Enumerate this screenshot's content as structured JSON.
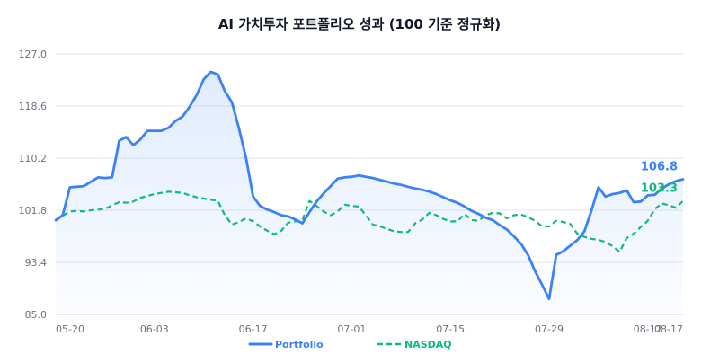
{
  "chart_data": {
    "type": "line",
    "title": "AI 가치투자 포트폴리오 성과 (100 기준 정규화)",
    "xlabel": "",
    "ylabel": "",
    "ylim": [
      85.0,
      127.0
    ],
    "y_ticks": [
      "127.0",
      "118.6",
      "110.2",
      "101.8",
      "93.4",
      "85.0"
    ],
    "y_tick_values": [
      127.0,
      118.6,
      110.2,
      101.8,
      93.4,
      85.0
    ],
    "x_ticks": [
      "05-20",
      "06-03",
      "06-17",
      "07-01",
      "07-15",
      "07-29",
      "08-12",
      "08-17"
    ],
    "x_tick_indices": [
      0,
      14,
      28,
      42,
      56,
      70,
      84,
      89
    ],
    "grid": true,
    "legend_position": "bottom",
    "colors": {
      "portfolio": "#3b82f6",
      "nasdaq": "#10b981"
    },
    "series": [
      {
        "name": "Portfolio",
        "x": [
          0,
          1,
          2,
          3,
          4,
          5,
          6,
          7,
          8,
          9,
          10,
          11,
          12,
          13,
          14,
          15,
          16,
          17,
          18,
          19,
          20,
          21,
          22,
          23,
          24,
          25,
          26,
          27,
          28,
          29,
          30,
          31,
          32,
          33,
          34,
          35,
          36,
          37,
          38,
          39,
          40,
          41,
          42,
          43,
          44,
          45,
          46,
          47,
          48,
          49,
          50,
          51,
          52,
          53,
          54,
          55,
          56,
          57,
          58,
          59,
          60,
          61,
          62,
          63,
          64,
          65,
          66,
          67,
          68,
          69,
          70,
          71,
          72,
          73,
          74,
          75,
          76,
          77,
          78,
          79,
          80,
          81,
          82,
          83,
          84,
          85,
          86,
          87,
          88,
          89
        ],
        "values": [
          100.2,
          101.0,
          105.5,
          105.6,
          105.7,
          106.4,
          107.1,
          107.0,
          107.1,
          113.0,
          113.6,
          112.3,
          113.2,
          114.6,
          114.6,
          114.6,
          115.1,
          116.2,
          116.9,
          118.5,
          120.4,
          122.9,
          124.1,
          123.7,
          121.0,
          119.2,
          115.0,
          110.2,
          104.0,
          102.5,
          101.9,
          101.5,
          101.0,
          100.8,
          100.3,
          99.7,
          101.5,
          103.2,
          104.5,
          105.7,
          106.9,
          107.1,
          107.2,
          107.4,
          107.2,
          107.0,
          106.7,
          106.4,
          106.1,
          105.9,
          105.6,
          105.3,
          105.1,
          104.8,
          104.4,
          103.9,
          103.4,
          103.0,
          102.4,
          101.7,
          101.2,
          100.6,
          100.2,
          99.4,
          98.7,
          97.6,
          96.4,
          94.6,
          92.0,
          89.8,
          87.5,
          94.6,
          95.2,
          96.1,
          97.0,
          98.4,
          101.7,
          105.5,
          104.0,
          104.4,
          104.6,
          105.0,
          103.1,
          103.2,
          104.2,
          104.3,
          105.3,
          106.0,
          106.5,
          106.8
        ]
      },
      {
        "name": "NASDAQ",
        "x": [
          0,
          1,
          2,
          3,
          4,
          5,
          6,
          7,
          8,
          9,
          10,
          11,
          12,
          13,
          14,
          15,
          16,
          17,
          18,
          19,
          20,
          21,
          22,
          23,
          24,
          25,
          26,
          27,
          28,
          29,
          30,
          31,
          32,
          33,
          34,
          35,
          36,
          37,
          38,
          39,
          40,
          41,
          42,
          43,
          44,
          45,
          46,
          47,
          48,
          49,
          50,
          51,
          52,
          53,
          54,
          55,
          56,
          57,
          58,
          59,
          60,
          61,
          62,
          63,
          64,
          65,
          66,
          67,
          68,
          69,
          70,
          71,
          72,
          73,
          74,
          75,
          76,
          77,
          78,
          79,
          80,
          81,
          82,
          83,
          84,
          85,
          86,
          87,
          88,
          89
        ],
        "values": [
          100.1,
          100.9,
          101.6,
          101.7,
          101.6,
          101.8,
          101.9,
          102.0,
          102.6,
          103.1,
          103.0,
          103.2,
          103.8,
          104.1,
          104.4,
          104.6,
          104.8,
          104.7,
          104.6,
          104.2,
          103.9,
          103.7,
          103.5,
          103.3,
          101.0,
          99.5,
          99.9,
          100.5,
          100.0,
          99.2,
          98.5,
          97.9,
          98.5,
          99.8,
          100.0,
          100.2,
          103.3,
          102.5,
          101.6,
          101.0,
          101.6,
          102.7,
          102.5,
          102.4,
          101.0,
          99.5,
          99.2,
          98.8,
          98.4,
          98.3,
          98.3,
          99.7,
          100.3,
          101.4,
          101.0,
          100.4,
          100.0,
          100.0,
          101.2,
          100.2,
          100.1,
          101.0,
          101.4,
          101.3,
          100.5,
          101.0,
          101.1,
          100.7,
          100.1,
          99.2,
          99.2,
          100.1,
          99.9,
          99.6,
          98.0,
          97.5,
          97.2,
          97.0,
          96.7,
          96.0,
          95.1,
          97.3,
          98.0,
          99.1,
          100.1,
          102.0,
          102.9,
          102.6,
          102.2,
          103.3
        ]
      }
    ],
    "end_labels": {
      "portfolio": "106.8",
      "nasdaq": "103.3"
    }
  }
}
